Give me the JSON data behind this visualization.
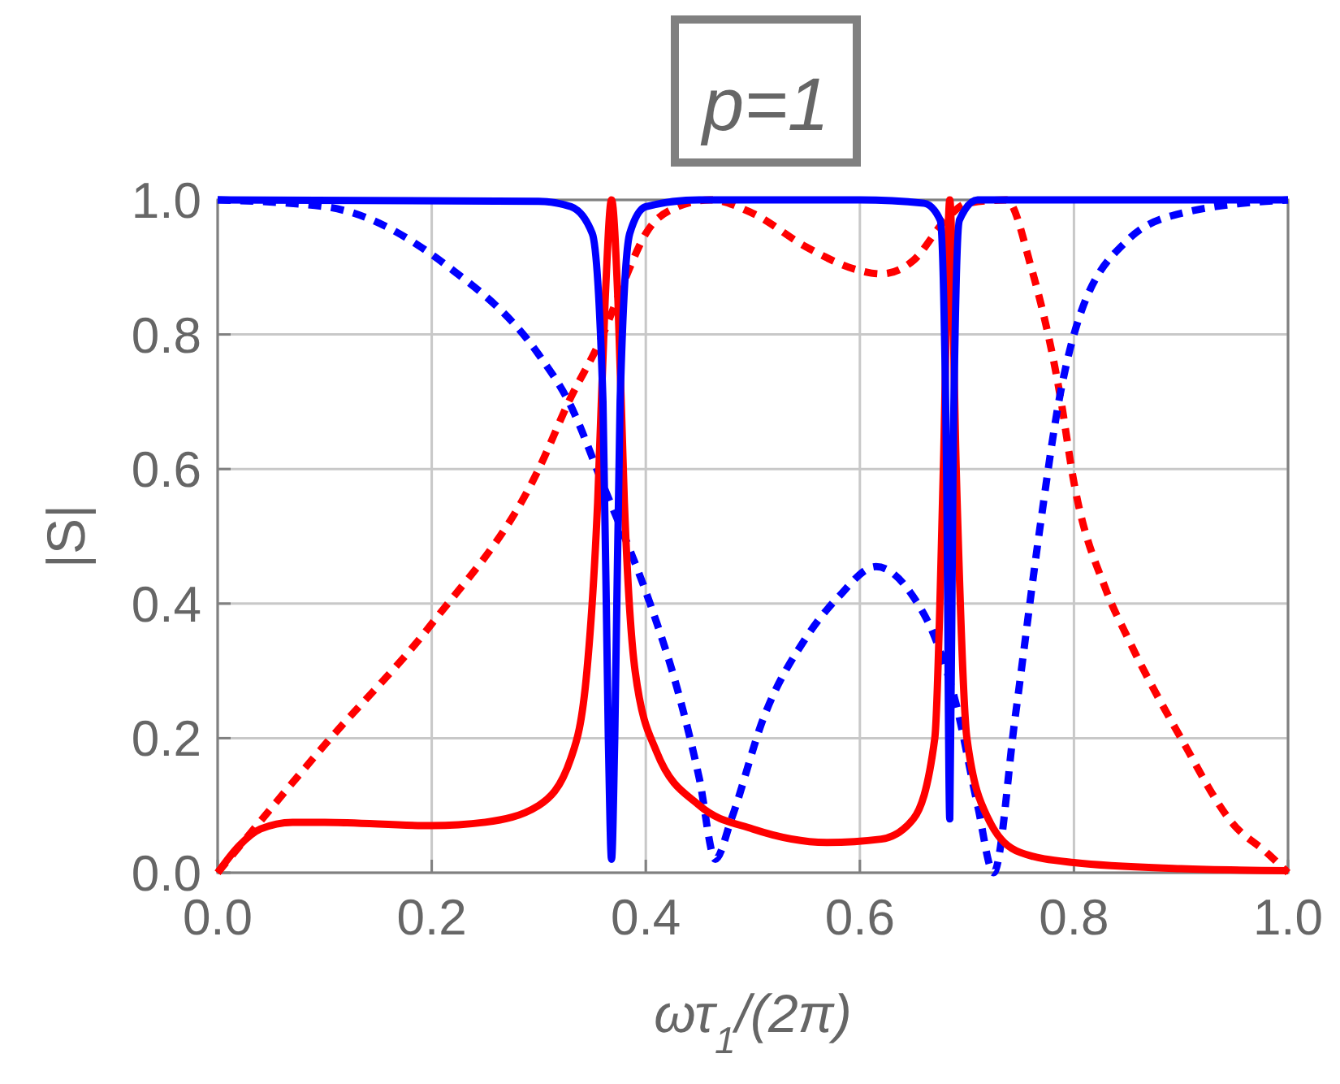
{
  "chart_data": {
    "type": "line",
    "title": "p=1",
    "xlabel": "ωτ$_{1}$/(2π)",
    "ylabel": "|S|",
    "xlim": [
      0,
      1
    ],
    "ylim": [
      0,
      1
    ],
    "xticks": [
      {
        "value": 0,
        "label": "0.0"
      },
      0.2,
      0.4,
      0.6,
      0.8,
      {
        "value": 1,
        "label": "1.0"
      }
    ],
    "yticks": [
      {
        "value": 0,
        "label": "0.0"
      },
      0.2,
      0.4,
      0.6,
      0.8,
      {
        "value": 1,
        "label": "1.0"
      }
    ],
    "grid": true,
    "series": [
      {
        "color": "#ff0000",
        "line_style": "dashed",
        "x": [
          0,
          0.1,
          0.2,
          0.3,
          0.328,
          0.36,
          0.38,
          0.4,
          0.43,
          0.46,
          0.5,
          0.55,
          0.6,
          0.62,
          0.65,
          0.68,
          0.7,
          0.737,
          0.76,
          0.787,
          0.8,
          0.83,
          0.85,
          0.9,
          0.95,
          0.98,
          1
        ],
        "values": [
          0,
          0.19,
          0.37,
          0.6,
          0.7,
          0.8,
          0.88,
          0.95,
          0.99,
          1,
          0.98,
          0.93,
          0.895,
          0.89,
          0.91,
          0.97,
          0.995,
          1,
          0.9,
          0.71,
          0.58,
          0.42,
          0.35,
          0.2,
          0.07,
          0.03,
          0
        ]
      },
      {
        "color": "#0000ff",
        "line_style": "dashed",
        "x": [
          0,
          0.1,
          0.216,
          0.3,
          0.328,
          0.363,
          0.38,
          0.404,
          0.43,
          0.45,
          0.465,
          0.48,
          0.51,
          0.55,
          0.58,
          0.615,
          0.65,
          0.67,
          0.69,
          0.71,
          0.725,
          0.745,
          0.768,
          0.787,
          0.8,
          0.85,
          0.9,
          1
        ],
        "values": [
          1,
          0.99,
          0.9,
          0.77,
          0.7,
          0.565,
          0.5,
          0.4,
          0.27,
          0.14,
          0.02,
          0.08,
          0.23,
          0.35,
          0.41,
          0.455,
          0.41,
          0.35,
          0.25,
          0.1,
          0,
          0.23,
          0.51,
          0.71,
          0.8,
          0.94,
          0.98,
          1
        ]
      },
      {
        "color": "#ff0000",
        "line_style": "solid",
        "x": [
          0,
          0.02,
          0.04,
          0.07,
          0.1,
          0.2,
          0.25,
          0.3,
          0.33,
          0.345,
          0.355,
          0.362,
          0.368,
          0.374,
          0.38,
          0.39,
          0.41,
          0.45,
          0.5,
          0.57,
          0.62,
          0.65,
          0.67,
          0.678,
          0.684,
          0.69,
          0.7,
          0.72,
          0.75,
          0.8,
          0.9,
          1
        ],
        "values": [
          0,
          0.04,
          0.065,
          0.075,
          0.075,
          0.07,
          0.075,
          0.1,
          0.17,
          0.3,
          0.55,
          0.85,
          1,
          0.85,
          0.55,
          0.3,
          0.18,
          0.1,
          0.065,
          0.045,
          0.05,
          0.08,
          0.2,
          0.6,
          1,
          0.6,
          0.2,
          0.08,
          0.03,
          0.015,
          0.006,
          0.003
        ]
      },
      {
        "color": "#0000ff",
        "line_style": "solid",
        "x": [
          0,
          0.3,
          0.33,
          0.35,
          0.36,
          0.365,
          0.368,
          0.371,
          0.376,
          0.385,
          0.4,
          0.45,
          0.6,
          0.66,
          0.675,
          0.681,
          0.684,
          0.687,
          0.693,
          0.71,
          1
        ],
        "values": [
          1,
          0.998,
          0.99,
          0.95,
          0.7,
          0.2,
          0.02,
          0.2,
          0.7,
          0.95,
          0.99,
          1,
          1,
          0.995,
          0.97,
          0.6,
          0.08,
          0.6,
          0.97,
          1,
          1
        ]
      }
    ]
  }
}
